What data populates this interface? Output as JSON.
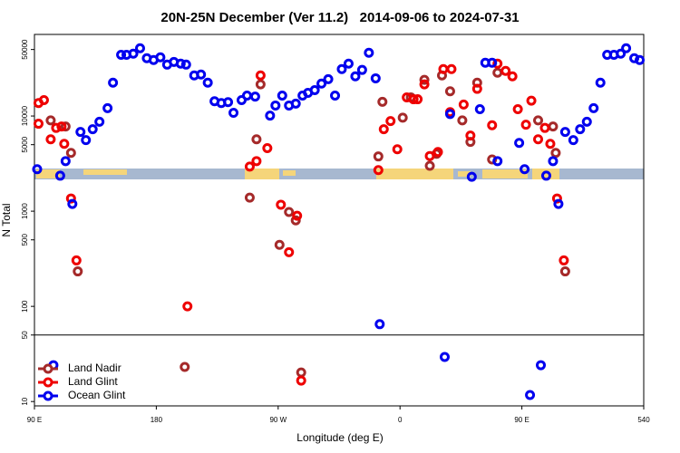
{
  "chart_data": {
    "type": "scatter",
    "title": "20N-25N December (Ver 11.2)   2014-09-06 to 2024-07-31",
    "xlabel": "Longitude (deg E)",
    "ylabel": "N Total",
    "xlim": [
      90,
      540
    ],
    "xticks": [
      {
        "value": 90,
        "label": "90 E"
      },
      180,
      {
        "value": 270,
        "label": "90 W"
      },
      {
        "value": 360,
        "label": "0"
      },
      {
        "value": 450,
        "label": "90 E"
      },
      540
    ],
    "ylim": [
      9,
      72000
    ],
    "log_y": true,
    "yticks": [
      10,
      50,
      100,
      500,
      1000,
      5000,
      10000,
      50000
    ],
    "hline": 50,
    "legend": "bottom-left",
    "series": [
      {
        "name": "Land Nadir",
        "color": "#a52a2a",
        "x": [
          102,
          113,
          117,
          122,
          201,
          249,
          254,
          257,
          271,
          278,
          283,
          287,
          344,
          347,
          362,
          368,
          378,
          382,
          387,
          391,
          397,
          406,
          412,
          417,
          428,
          432,
          462,
          473,
          475,
          482
        ],
        "values": [
          9000,
          7760,
          4100,
          233,
          23.1,
          1390,
          5700,
          21500,
          443,
          980,
          800,
          20.2,
          3760,
          14100,
          9600,
          15700,
          24000,
          3000,
          4010,
          26700,
          18200,
          9000,
          5350,
          22400,
          3500,
          28500,
          9000,
          7760,
          4100,
          233
        ]
      },
      {
        "name": "Land Glint",
        "color": "#ee0000",
        "x": [
          93,
          93,
          97,
          102,
          106,
          110,
          112,
          117,
          121,
          203,
          249,
          254,
          257,
          262,
          272,
          278,
          284,
          287,
          344,
          348,
          353,
          358,
          365,
          370,
          373,
          378,
          382,
          388,
          392,
          397,
          398,
          407,
          412,
          417,
          428,
          432,
          438,
          443,
          447,
          453,
          457,
          462,
          467,
          471,
          476,
          481
        ],
        "values": [
          8300,
          13700,
          14700,
          5700,
          7500,
          7760,
          5100,
          1360,
          304,
          100,
          2940,
          3360,
          26700,
          4600,
          1170,
          371,
          895,
          16.6,
          2700,
          7270,
          8860,
          4470,
          15700,
          15000,
          15000,
          21500,
          3800,
          4190,
          31100,
          11000,
          31100,
          13200,
          6230,
          19300,
          8000,
          35500,
          29800,
          26100,
          11800,
          8100,
          14500,
          5700,
          7500,
          5100,
          1360,
          304
        ]
      },
      {
        "name": "Ocean Glint",
        "color": "#0000ee",
        "x": [
          92,
          104,
          109,
          113,
          118,
          124,
          128,
          133,
          138,
          144,
          148,
          154,
          158,
          163,
          168,
          173,
          178,
          183,
          188,
          193,
          198,
          202,
          208,
          213,
          218,
          223,
          228,
          233,
          237,
          243,
          247,
          253,
          264,
          268,
          273,
          278,
          283,
          288,
          292,
          297,
          302,
          307,
          312,
          317,
          322,
          327,
          332,
          337,
          342,
          345,
          393,
          397,
          413,
          419,
          423,
          428,
          432,
          448,
          452,
          456,
          464,
          468,
          473,
          477,
          482,
          488,
          493,
          498,
          503,
          508,
          513,
          518,
          523,
          527,
          533,
          537
        ],
        "values": [
          2760,
          24.1,
          2360,
          3360,
          1190,
          6800,
          5580,
          7270,
          8700,
          12100,
          22400,
          44000,
          44000,
          45200,
          51500,
          40500,
          38800,
          41400,
          34700,
          37000,
          35500,
          34700,
          26700,
          27300,
          22400,
          14300,
          13700,
          14000,
          10800,
          14700,
          16400,
          16000,
          10100,
          12900,
          16400,
          12900,
          13500,
          16400,
          17500,
          18700,
          21900,
          24400,
          16400,
          31100,
          35500,
          26100,
          30500,
          46200,
          24900,
          65,
          29.4,
          10500,
          2300,
          11800,
          36300,
          36300,
          3360,
          5220,
          2760,
          11.7,
          24.1,
          2360,
          3360,
          1190,
          6800,
          5580,
          7270,
          8700,
          12100,
          22400,
          44000,
          44000,
          45200,
          51500,
          40500,
          38800
        ]
      }
    ]
  }
}
